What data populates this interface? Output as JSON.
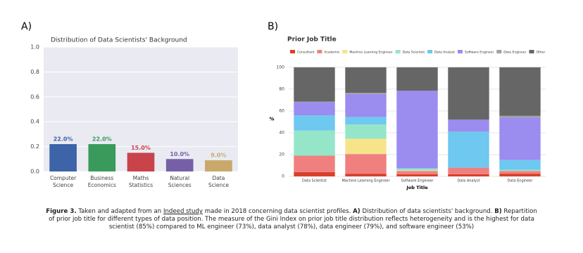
{
  "chart_data": [
    {
      "type": "bar",
      "panel": "A)",
      "title": "Distribution of Data Scientists' Background",
      "categories": [
        "Computer Science",
        "Business Economics",
        "Maths Statistics",
        "Natural Sciences",
        "Data Science"
      ],
      "values": [
        0.22,
        0.22,
        0.15,
        0.1,
        0.09
      ],
      "value_labels": [
        "22.0%",
        "22.0%",
        "15.0%",
        "10.0%",
        "9.0%"
      ],
      "colors": [
        "#3d63a8",
        "#3a9a5c",
        "#c8434a",
        "#7560a8",
        "#c9a96b"
      ],
      "ylim": [
        0,
        1.0
      ],
      "yticks": [
        {
          "value": 0,
          "label": "0.0"
        },
        0.2,
        0.4,
        0.6,
        0.8,
        {
          "value": 1.0,
          "label": "1.0"
        }
      ],
      "grid": true
    },
    {
      "type": "stacked_bar",
      "panel": "B)",
      "title": "Prior Job Title",
      "ylabel": "%",
      "xlabel": "Job Title",
      "categories": [
        "Data Scientist",
        "Machine Learning Engineer",
        "Software Engineer",
        "Data Analyst",
        "Data Engineer"
      ],
      "series": [
        {
          "name": "Consultant",
          "color": "#d9402b",
          "values": [
            4,
            2.5,
            2,
            2,
            2.5
          ]
        },
        {
          "name": "Academic",
          "color": "#f08080",
          "values": [
            15,
            18,
            3,
            6,
            2.5
          ]
        },
        {
          "name": "Machine Learning Engineer",
          "color": "#f7e48a",
          "values": [
            0,
            14,
            0.5,
            0,
            0
          ]
        },
        {
          "name": "Data Scientist",
          "color": "#95e6c8",
          "values": [
            23,
            13,
            1.5,
            0,
            1
          ]
        },
        {
          "name": "Data Analyst",
          "color": "#6ec8f0",
          "values": [
            14,
            7,
            0.5,
            33,
            9
          ]
        },
        {
          "name": "Software Engineer",
          "color": "#9b8cf0",
          "values": [
            12,
            21,
            71,
            11,
            39
          ]
        },
        {
          "name": "Data Engineer",
          "color": "#a0a0a0",
          "values": [
            0.5,
            1,
            0,
            0,
            1.5
          ]
        },
        {
          "name": "Other",
          "color": "#666666",
          "values": [
            31.5,
            23.5,
            21.5,
            48,
            44.5
          ]
        }
      ],
      "ylim": [
        0,
        105
      ],
      "yticks": [
        0,
        20,
        40,
        60,
        80,
        100
      ],
      "grid": true
    }
  ],
  "caption": {
    "parts": [
      "Figure 3.",
      " Taken and adapted from an ",
      "Indeed study",
      " made in 2018 concerning data scientist profiles. ",
      "A)",
      " Distribution of data scientists' background. ",
      "B)",
      " Repartition of prior job title for different types of data position. The measure of the Gini Index on prior job title distribution reflects heterogeneity and is the highest for data scientist (85%) compared to ML engineer (73%), data analyst (78%), data engineer (79%), and software engineer (53%)"
    ]
  }
}
